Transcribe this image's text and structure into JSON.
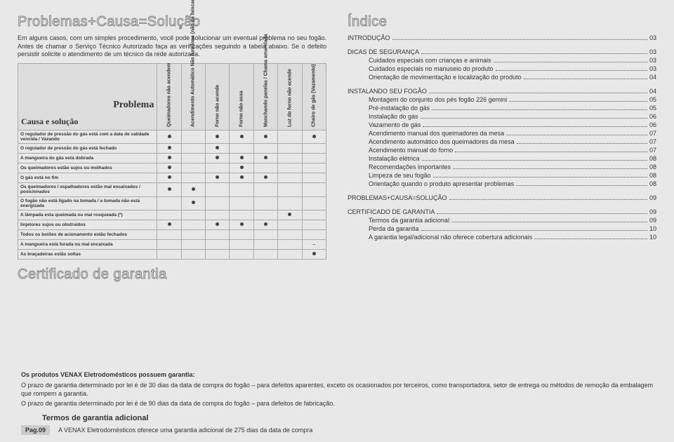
{
  "left": {
    "title": "Problemas+Causa=Solução",
    "intro": "Em alguns casos, com um simples procedimento, você pode solucionar um eventual problema no seu fogão. Antes de chamar o Serviço Técnico Autorizado faça as verificações seguindo a tabela abaixo. Se o defeito persistir solicite o atendimento de um técnico da rede autorizada.",
    "corner_top": "Problema",
    "corner_bottom": "Causa e solução",
    "cols": [
      "Queimadores não acendem",
      "Acendimento Automático Não funciona (não dá faiscamento)",
      "Forno não acende",
      "Forno não assa",
      "Manchando panelas / Chama amarelada",
      "Luz do forno não acende",
      "Cheiro de gás (Vazamento)"
    ],
    "rows": [
      {
        "label": "O regulador de pressão do gás está com a data de validade vencida / Vazando",
        "cells": [
          1,
          0,
          1,
          1,
          1,
          0,
          1
        ]
      },
      {
        "label": "O regulador de pressão do gás está fechado",
        "cells": [
          1,
          0,
          1,
          0,
          0,
          0,
          0
        ]
      },
      {
        "label": "A mangueira do gás está dobrada",
        "cells": [
          1,
          0,
          1,
          1,
          1,
          0,
          0
        ]
      },
      {
        "label": "Os queimadores estão sujos ou molhados",
        "cells": [
          1,
          0,
          0,
          1,
          0,
          0,
          0
        ]
      },
      {
        "label": "O gás está no fim",
        "cells": [
          1,
          0,
          1,
          1,
          1,
          0,
          0
        ]
      },
      {
        "label": "Os queimadores / espalhadores estão mal encaixados / posicionados",
        "cells": [
          1,
          1,
          0,
          0,
          0,
          0,
          0
        ]
      },
      {
        "label": "O fogão não está ligado na tomada / a tomada não está energizada",
        "cells": [
          0,
          1,
          0,
          0,
          0,
          0,
          0
        ]
      },
      {
        "label": "A lâmpada esta queimada ou mal rosqueada (*)",
        "cells": [
          0,
          0,
          0,
          0,
          0,
          1,
          0
        ]
      },
      {
        "label": "Iinjetores sujos ou obstruídos",
        "cells": [
          1,
          0,
          1,
          1,
          1,
          0,
          0
        ]
      },
      {
        "label": "Todos os botões de acionamento estão fechados",
        "cells": [
          0,
          0,
          0,
          0,
          0,
          0,
          0
        ]
      },
      {
        "label": "A mangueira está furada ou mal encaixada",
        "cells": [
          0,
          0,
          0,
          0,
          0,
          0,
          -1
        ]
      },
      {
        "label": "As braçadeiras estão soltas",
        "cells": [
          0,
          0,
          0,
          0,
          0,
          0,
          1
        ]
      }
    ],
    "cert_title": "Certificado de garantia"
  },
  "right": {
    "title": "Índice",
    "items": [
      {
        "label": "INTRODUÇÃO",
        "page": "03",
        "sub": false,
        "gap": true
      },
      {
        "label": "DICAS DE SEGURANÇA",
        "page": "03",
        "sub": false
      },
      {
        "label": "Cuidados especiais com crianças e animais",
        "page": "03",
        "sub": true
      },
      {
        "label": "Cuidados especiais no manuseio do produto",
        "page": "03",
        "sub": true
      },
      {
        "label": "Orientação de movimentação e localização do produto",
        "page": "04",
        "sub": true,
        "gap": true
      },
      {
        "label": "INSTALANDO SEU FOGÃO",
        "page": "04",
        "sub": false
      },
      {
        "label": "Montagem do conjunto dos pés fogão 226 gemini",
        "page": "05",
        "sub": true
      },
      {
        "label": "Pré-instalação do gás",
        "page": "05",
        "sub": true
      },
      {
        "label": "Instalação do gás",
        "page": "06",
        "sub": true
      },
      {
        "label": "Vazamento de gás",
        "page": "06",
        "sub": true
      },
      {
        "label": "Acendimento manual dos queimadores da mesa",
        "page": "07",
        "sub": true
      },
      {
        "label": "Acendimento automático dos queimadores da mesa",
        "page": "07",
        "sub": true
      },
      {
        "label": "Acendimento manual do forno",
        "page": "07",
        "sub": true
      },
      {
        "label": "Instalação elétrica",
        "page": "08",
        "sub": true
      },
      {
        "label": "Recomendações importantes",
        "page": "08",
        "sub": true
      },
      {
        "label": "Limpeza de seu fogão",
        "page": "08",
        "sub": true
      },
      {
        "label": "Orientação quando o produto apresentar problemas",
        "page": "08",
        "sub": true,
        "gap": true
      },
      {
        "label": "PROBLEMAS+CAUSA=SOLUÇÃO",
        "page": "09",
        "sub": false,
        "gap": true
      },
      {
        "label": "CERTIFICADO DE GARANTIA",
        "page": "09",
        "sub": false
      },
      {
        "label": "Termos da garantia adicional",
        "page": "09",
        "sub": true
      },
      {
        "label": "Perda da garantia",
        "page": "10",
        "sub": true
      },
      {
        "label": "A garantia legal/adicional não oferece cobertura adicionais",
        "page": "10",
        "sub": true
      }
    ]
  },
  "bottom": {
    "bold_lead": "Os produtos VENAX Eletrodomésticos possuem garantia:",
    "p1": "O prazo de garantia determinado por lei é de 30 dias da data de compra do fogão – para defeitos aparentes, exceto os ocasionados por terceiros, como transportadora, setor de entrega ou métodos de remoção da embalagem que rompem a garantia.",
    "p2": "O prazo de garantia determinado por lei é de 90 dias da data de compra do fogão – para defeitos de fabricação.",
    "sub_title": "Termos de garantia adicional",
    "page_tag": "Pag.09",
    "last": "A VENAX Eletrodomésticos oferece uma garantia adicional de 275 dias da data de compra"
  }
}
